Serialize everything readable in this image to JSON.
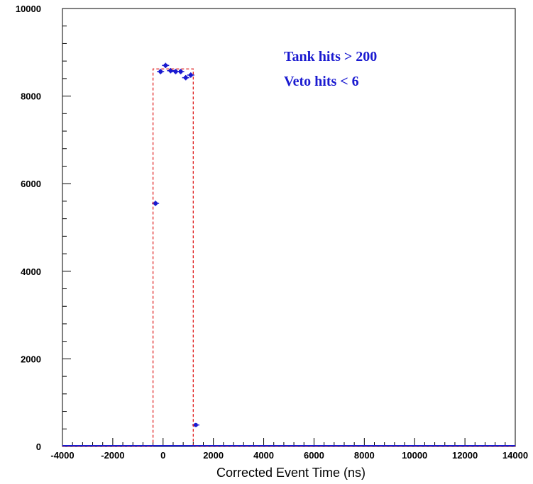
{
  "chart_data": {
    "type": "scatter",
    "title": "",
    "xlabel": "Corrected Event Time (ns)",
    "ylabel": "",
    "xlim": [
      -4000,
      14000
    ],
    "ylim": [
      0,
      10000
    ],
    "x_ticks": [
      "-4000",
      "-2000",
      "0",
      "2000",
      "4000",
      "6000",
      "8000",
      "10000",
      "12000",
      "14000"
    ],
    "y_ticks": [
      "0",
      "2000",
      "4000",
      "6000",
      "8000",
      "10000"
    ],
    "grid": false,
    "annotations": [
      "Tank hits > 200",
      "Veto hits < 6"
    ],
    "series": [
      {
        "kind": "points",
        "color": "#1a1ad0",
        "x": [
          -300,
          -100,
          100,
          300,
          500,
          700,
          900,
          1100,
          1300
        ],
        "y": [
          5550,
          8560,
          8700,
          8580,
          8560,
          8560,
          8420,
          8480,
          490
        ],
        "yerr": [
          60,
          60,
          60,
          60,
          60,
          60,
          60,
          60,
          30
        ]
      },
      {
        "kind": "fit-line",
        "color": "#e02020",
        "style": "dashed",
        "x": [
          -4000,
          -400,
          -400,
          1200,
          1200,
          14000
        ],
        "y": [
          0,
          0,
          8620,
          8620,
          0,
          0
        ]
      },
      {
        "kind": "baseline",
        "color": "#1a1ad0",
        "x": [
          -4000,
          14000
        ],
        "y": [
          0,
          0
        ]
      }
    ]
  }
}
